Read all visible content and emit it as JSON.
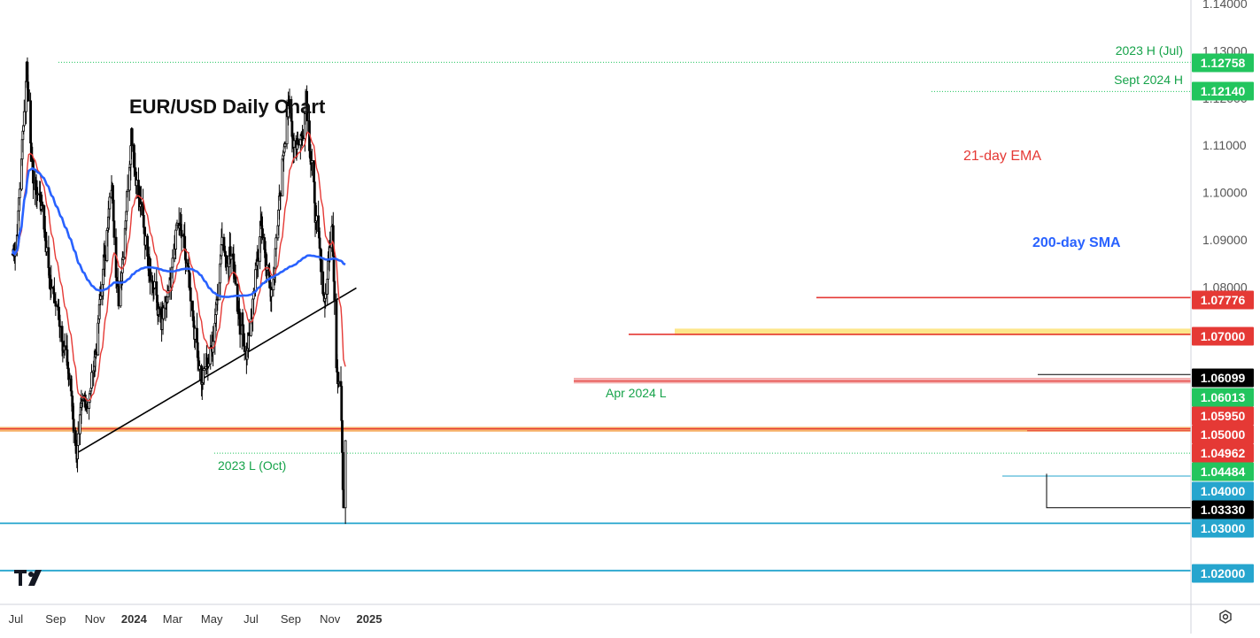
{
  "chart_data": {
    "type": "candlestick",
    "title": "EUR/USD Daily Chart",
    "x_ticks": [
      "Jul",
      "Sep",
      "Nov",
      "2024",
      "Mar",
      "May",
      "Jul",
      "Sep",
      "Nov",
      "2025"
    ],
    "y_ticks": [
      "1.14000",
      "1.13000",
      "1.12000",
      "1.11000",
      "1.10000",
      "1.09000",
      "1.08000",
      "1.07000",
      "1.06000",
      "1.05000",
      "1.04000",
      "1.03000",
      "1.02000"
    ],
    "ylim": [
      1.015,
      1.14
    ],
    "price_path": [
      [
        "2023-06-26",
        1.087
      ],
      [
        "2023-07-03",
        1.091
      ],
      [
        "2023-07-12",
        1.113
      ],
      [
        "2023-07-18",
        1.1276
      ],
      [
        "2023-07-28",
        1.102
      ],
      [
        "2023-08-10",
        1.098
      ],
      [
        "2023-08-25",
        1.08
      ],
      [
        "2023-09-10",
        1.072
      ],
      [
        "2023-09-25",
        1.058
      ],
      [
        "2023-10-03",
        1.0448
      ],
      [
        "2023-10-15",
        1.055
      ],
      [
        "2023-10-25",
        1.058
      ],
      [
        "2023-11-05",
        1.07
      ],
      [
        "2023-11-20",
        1.092
      ],
      [
        "2023-11-28",
        1.1015
      ],
      [
        "2023-12-08",
        1.076
      ],
      [
        "2023-12-28",
        1.1135
      ],
      [
        "2024-01-10",
        1.097
      ],
      [
        "2024-01-25",
        1.086
      ],
      [
        "2024-02-13",
        1.071
      ],
      [
        "2024-02-28",
        1.08
      ],
      [
        "2024-03-08",
        1.0935
      ],
      [
        "2024-03-20",
        1.088
      ],
      [
        "2024-04-01",
        1.075
      ],
      [
        "2024-04-16",
        1.0601
      ],
      [
        "2024-05-01",
        1.067
      ],
      [
        "2024-05-16",
        1.089
      ],
      [
        "2024-06-03",
        1.087
      ],
      [
        "2024-06-14",
        1.07
      ],
      [
        "2024-06-26",
        1.067
      ],
      [
        "2024-07-17",
        1.093
      ],
      [
        "2024-08-01",
        1.078
      ],
      [
        "2024-08-12",
        1.093
      ],
      [
        "2024-08-26",
        1.119
      ],
      [
        "2024-09-06",
        1.111
      ],
      [
        "2024-09-18",
        1.112
      ],
      [
        "2024-09-25",
        1.1214
      ],
      [
        "2024-10-10",
        1.094
      ],
      [
        "2024-10-23",
        1.077
      ],
      [
        "2024-11-05",
        1.093
      ],
      [
        "2024-11-12",
        1.062
      ],
      [
        "2024-11-18",
        1.059
      ],
      [
        "2024-11-22",
        1.0333
      ],
      [
        "2024-11-25",
        1.0475
      ]
    ],
    "indicators": [
      {
        "name": "21-day EMA",
        "color": "#e53935",
        "end_value": 1.064
      },
      {
        "name": "200-day SMA",
        "color": "#2962ff",
        "end_value": 1.0855
      }
    ],
    "price_labels": [
      {
        "value": "1.12758",
        "text": "2023 H (Jul)",
        "bg": "#22c55e",
        "fg": "#ffffff"
      },
      {
        "value": "1.12140",
        "text": "Sept 2024 H",
        "bg": "#22c55e",
        "fg": "#ffffff"
      },
      {
        "value": "1.07776",
        "text": "",
        "bg": "#e53935",
        "fg": "#ffffff"
      },
      {
        "value": "1.07000",
        "text": "",
        "bg": "#e53935",
        "fg": "#ffffff"
      },
      {
        "value": "1.06099",
        "text": "",
        "bg": "#000000",
        "fg": "#ffffff"
      },
      {
        "value": "1.06013",
        "text": "Apr 2024 L",
        "bg": "#22c55e",
        "fg": "#ffffff"
      },
      {
        "value": "1.05950",
        "text": "",
        "bg": "#e53935",
        "fg": "#ffffff"
      },
      {
        "value": "1.05000",
        "text": "",
        "bg": "#e53935",
        "fg": "#ffffff"
      },
      {
        "value": "1.04962",
        "text": "",
        "bg": "#e53935",
        "fg": "#ffffff"
      },
      {
        "value": "1.04484",
        "text": "2023 L (Oct)",
        "bg": "#22c55e",
        "fg": "#ffffff"
      },
      {
        "value": "1.04000",
        "text": "",
        "bg": "#26a5ce",
        "fg": "#ffffff"
      },
      {
        "value": "1.03330",
        "text": "",
        "bg": "#000000",
        "fg": "#ffffff"
      },
      {
        "value": "1.03000",
        "text": "",
        "bg": "#26a5ce",
        "fg": "#ffffff"
      },
      {
        "value": "1.02000",
        "text": "",
        "bg": "#26a5ce",
        "fg": "#ffffff"
      }
    ],
    "trendline": {
      "from": [
        "2023-10-03",
        1.0448
      ],
      "to": [
        "2024-12-12",
        1.0798
      ]
    },
    "colors": {
      "candle": "#000000",
      "support_zone": "#fde68a",
      "horizontal_line": "#26a5ce"
    }
  }
}
